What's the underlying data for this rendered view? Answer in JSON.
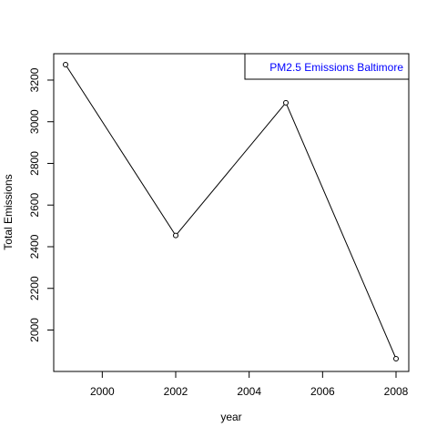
{
  "chart_data": {
    "type": "line",
    "xlabel": "year",
    "ylabel": "Total Emissions",
    "x": [
      1999,
      2002,
      2005,
      2008
    ],
    "series": [
      {
        "name": "",
        "values": [
          3274.18,
          2453.92,
          3091.35,
          1862.28
        ]
      }
    ],
    "xlim": [
      1999,
      2008
    ],
    "ylim": [
      1862.28,
      3274.18
    ],
    "xticks": [
      2000,
      2002,
      2004,
      2006,
      2008
    ],
    "xtick_labels": [
      "2000",
      "2002",
      "2004",
      "2006",
      "2008"
    ],
    "yticks": [
      2000,
      2200,
      2400,
      2600,
      2800,
      3000,
      3200
    ],
    "ytick_labels": [
      "2000",
      "2200",
      "2400",
      "2600",
      "2800",
      "3000",
      "3200"
    ],
    "legend": {
      "text": "PM2.5 Emissions Baltimore",
      "position": "top-right",
      "color": "#0000ff"
    },
    "grid": false,
    "line_color": "#000000",
    "marker": "open-circle"
  }
}
